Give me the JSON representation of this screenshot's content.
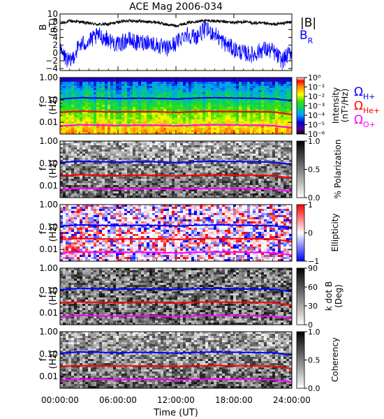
{
  "title": "ACE Mag 2006-034",
  "xlabel": "Time (UT)",
  "xticks": [
    "00:00:00",
    "06:00:00",
    "12:00:00",
    "18:00:00",
    "24:00:00"
  ],
  "colors": {
    "b_total": "#000000",
    "b_radial": "#0000ff",
    "omega_h": "#0000ff",
    "omega_he": "#ff0000",
    "omega_o": "#ff00ff"
  },
  "chart_data": [
    {
      "type": "line",
      "panel": "magnetic-field",
      "ylabel_1": "B",
      "ylabel_2": "(nT)",
      "ylim": [
        -4.5,
        10
      ],
      "yticks": [
        "10",
        "8",
        "6",
        "4",
        "2",
        "0",
        "−2",
        "−4"
      ],
      "xlim": [
        0,
        24
      ],
      "legend_1": "|B|",
      "legend_2": "B",
      "legend_2_sub": "R",
      "series": [
        {
          "name": "|B|",
          "x": [
            0,
            1,
            2,
            3,
            4,
            5,
            6,
            7,
            8,
            9,
            10,
            11,
            12,
            13,
            14,
            15,
            16,
            17,
            18,
            19,
            20,
            21,
            22,
            23,
            24
          ],
          "values": [
            7.5,
            8.2,
            8.0,
            7.6,
            7.3,
            7.4,
            7.9,
            8.3,
            8.2,
            8.0,
            7.9,
            7.3,
            7.0,
            7.6,
            8.1,
            8.3,
            8.2,
            8.0,
            7.8,
            8.0,
            7.7,
            7.6,
            7.3,
            7.6,
            8.0
          ]
        },
        {
          "name": "BR",
          "x": [
            0,
            1,
            2,
            3,
            4,
            5,
            6,
            7,
            8,
            9,
            10,
            11,
            12,
            13,
            14,
            15,
            16,
            17,
            18,
            19,
            20,
            21,
            22,
            23,
            24
          ],
          "values": [
            0.5,
            -2.5,
            2.0,
            3.0,
            4.5,
            3.5,
            2.0,
            3.5,
            2.5,
            3.0,
            2.0,
            1.0,
            2.5,
            5.0,
            4.0,
            6.0,
            5.0,
            2.5,
            1.0,
            0.0,
            -0.5,
            1.0,
            0.5,
            -2.0,
            0.5
          ]
        }
      ]
    },
    {
      "type": "heatmap",
      "panel": "intensity",
      "ylabel_1": "f",
      "ylabel_2": "(Hz)",
      "yticks": [
        "1.00",
        "0.10",
        "0.01"
      ],
      "ylim": [
        0.003,
        1.0
      ],
      "scale": "log",
      "colorbar_label_1": "Intensity",
      "colorbar_label_2": "(nT²/Hz)",
      "colorbar_ticks": [
        "10⁰",
        "10⁻¹",
        "10⁻²",
        "10⁻³",
        "10⁻⁴",
        "10⁻⁵",
        "10⁻⁶"
      ],
      "colorbar_range": [
        -6,
        0
      ],
      "colorbar_scale": "log",
      "legend": {
        "omega_h": "Ω",
        "omega_h_sub": "H+",
        "omega_he": "Ω",
        "omega_he_sub": "He+",
        "omega_o": "Ω",
        "omega_o_sub": "O+"
      }
    },
    {
      "type": "heatmap",
      "panel": "polarization",
      "ylabel_1": "f",
      "ylabel_2": "(Hz)",
      "yticks": [
        "1.00",
        "0.10",
        "0.01"
      ],
      "colorbar_label": "% Polarization",
      "colorbar_ticks": [
        "1.0",
        "0.5",
        "0.0"
      ],
      "colorbar_range": [
        0.0,
        1.0
      ]
    },
    {
      "type": "heatmap",
      "panel": "ellipticity",
      "ylabel_1": "f",
      "ylabel_2": "(Hz)",
      "yticks": [
        "1.00",
        "0.10",
        "0.01"
      ],
      "colorbar_label": "Ellipticity",
      "colorbar_ticks": [
        "1",
        "0",
        "−1"
      ],
      "colorbar_range": [
        -1,
        1
      ]
    },
    {
      "type": "heatmap",
      "panel": "k-dot-b",
      "ylabel_1": "f",
      "ylabel_2": "(Hz)",
      "yticks": [
        "1.00",
        "0.10",
        "0.01"
      ],
      "colorbar_label_1": "k dot B",
      "colorbar_label_2": "(Deg)",
      "colorbar_ticks": [
        "90",
        "60",
        "30",
        "0"
      ],
      "colorbar_range": [
        0,
        90
      ]
    },
    {
      "type": "heatmap",
      "panel": "coherency",
      "ylabel_1": "f",
      "ylabel_2": "(Hz)",
      "yticks": [
        "1.00",
        "0.10",
        "0.01"
      ],
      "colorbar_label": "Coherency",
      "colorbar_ticks": [
        "1.0",
        "0.5",
        "0.0"
      ],
      "colorbar_range": [
        0.0,
        1.0
      ]
    },
    {
      "type": "line",
      "panel": "gyrofrequencies",
      "x": [
        0,
        2,
        4,
        6,
        8,
        10,
        12,
        14,
        16,
        18,
        20,
        22,
        24
      ],
      "series": [
        {
          "name": "ΩH+",
          "values": [
            0.11,
            0.125,
            0.12,
            0.115,
            0.12,
            0.118,
            0.11,
            0.12,
            0.125,
            0.122,
            0.118,
            0.115,
            0.09
          ]
        },
        {
          "name": "ΩHe+",
          "values": [
            0.028,
            0.031,
            0.03,
            0.029,
            0.03,
            0.03,
            0.028,
            0.03,
            0.031,
            0.03,
            0.03,
            0.029,
            0.022
          ]
        },
        {
          "name": "ΩO+",
          "values": [
            0.0068,
            0.0078,
            0.0075,
            0.0072,
            0.0075,
            0.0074,
            0.0069,
            0.0075,
            0.0078,
            0.0076,
            0.0074,
            0.0072,
            0.0056
          ]
        }
      ]
    }
  ]
}
